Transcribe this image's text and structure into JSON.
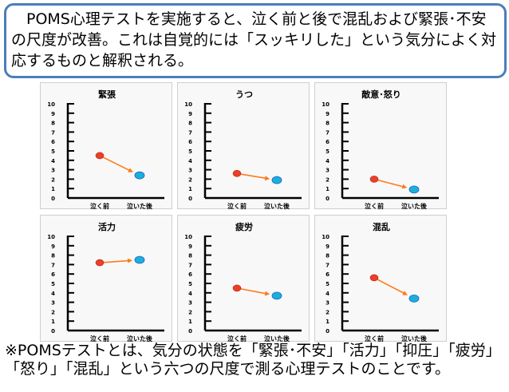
{
  "header": {
    "text": "　POMS心理テストを実施すると、泣く前と後で混乱および緊張･不安の尺度が改善。これは自覚的には「スッキリした」という気分によく対応するものと解釈される。"
  },
  "footer": {
    "text": "※POMSテストとは、気分の状態を「緊張･不安」「活力」「抑圧」「疲労」「怒り」「混乱」という六つの尺度で測る心理テストのことです。"
  },
  "colors": {
    "before": "#e8402a",
    "after": "#1ab0d8",
    "arrow": "#ff7a1a",
    "border": "#4a7ebb"
  },
  "chart_data": [
    {
      "type": "line",
      "title": "緊張",
      "categories": [
        "泣く前",
        "泣いた後"
      ],
      "values": [
        4.5,
        2.4
      ],
      "ylim": [
        0,
        10
      ],
      "yticks": [
        "0",
        "1",
        "2",
        "3",
        "4",
        "5",
        "6",
        "7",
        "8",
        "9",
        "10"
      ]
    },
    {
      "type": "line",
      "title": "うつ",
      "categories": [
        "泣く前",
        "泣いた後"
      ],
      "values": [
        2.6,
        1.9
      ],
      "ylim": [
        0,
        10
      ],
      "yticks": [
        "0",
        "1",
        "2",
        "3",
        "4",
        "5",
        "6",
        "7",
        "8",
        "9",
        "10"
      ]
    },
    {
      "type": "line",
      "title": "敵意･怒り",
      "categories": [
        "泣く前",
        "泣いた後"
      ],
      "values": [
        2.0,
        0.9
      ],
      "ylim": [
        0,
        10
      ],
      "yticks": [
        "0",
        "1",
        "2",
        "3",
        "4",
        "5",
        "6",
        "7",
        "8",
        "9",
        "10"
      ]
    },
    {
      "type": "line",
      "title": "活力",
      "categories": [
        "泣く前",
        "泣いた後"
      ],
      "values": [
        7.2,
        7.5
      ],
      "ylim": [
        0,
        10
      ],
      "yticks": [
        "0",
        "1",
        "2",
        "3",
        "4",
        "5",
        "6",
        "7",
        "8",
        "9",
        "10"
      ]
    },
    {
      "type": "line",
      "title": "疲労",
      "categories": [
        "泣く前",
        "泣いた後"
      ],
      "values": [
        4.5,
        3.7
      ],
      "ylim": [
        0,
        10
      ],
      "yticks": [
        "0",
        "1",
        "2",
        "3",
        "4",
        "5",
        "6",
        "7",
        "8",
        "9",
        "10"
      ]
    },
    {
      "type": "line",
      "title": "混乱",
      "categories": [
        "泣く前",
        "泣いた後"
      ],
      "values": [
        5.6,
        3.4
      ],
      "ylim": [
        0,
        10
      ],
      "yticks": [
        "0",
        "1",
        "2",
        "3",
        "4",
        "5",
        "6",
        "7",
        "8",
        "9",
        "10"
      ]
    }
  ]
}
